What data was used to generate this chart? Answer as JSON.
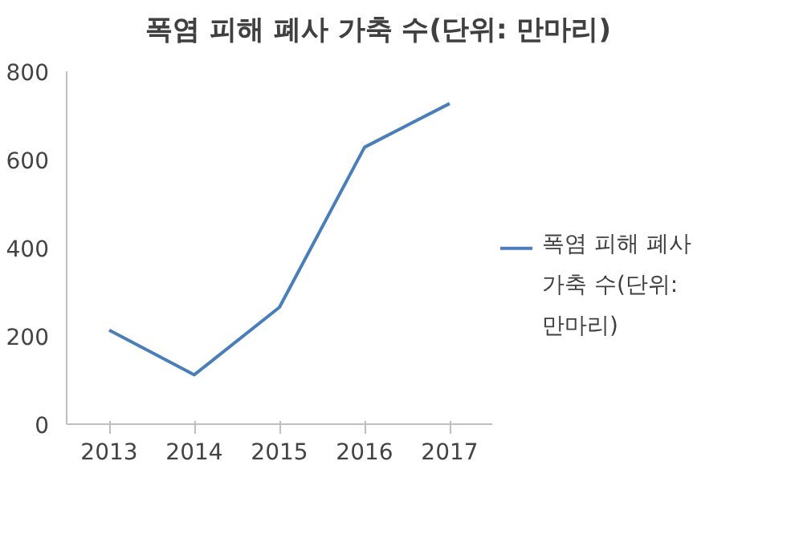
{
  "chart_data": {
    "type": "line",
    "title": "폭염 피해 폐사 가축 수(단위: 만마리)",
    "categories": [
      "2013",
      "2014",
      "2015",
      "2016",
      "2017"
    ],
    "series": [
      {
        "name": "폭염 피해 폐사 가축 수(단위: 만마리)",
        "color": "#4a7ebb",
        "values": [
          213,
          112,
          265,
          628,
          727
        ]
      }
    ],
    "ylim": [
      0,
      800
    ],
    "yticks": [
      0,
      200,
      400,
      600,
      800
    ],
    "grid": false,
    "legend": "right",
    "marker": "none",
    "line_style": "solid"
  }
}
